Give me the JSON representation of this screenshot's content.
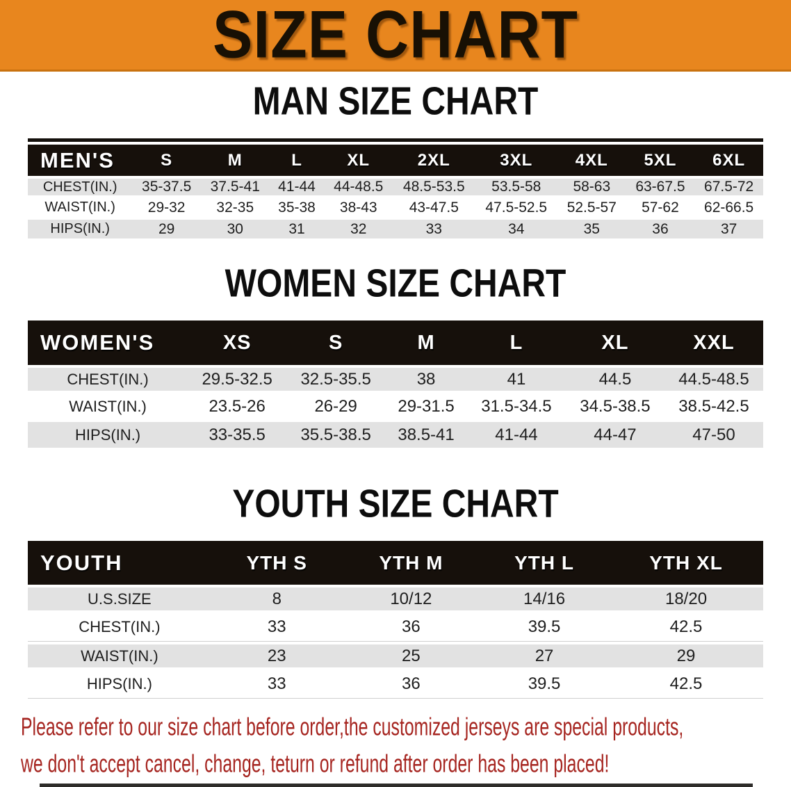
{
  "banner": {
    "title": "SIZE CHART",
    "bg_color": "#e8861e"
  },
  "sections": [
    {
      "heading": "MAN SIZE CHART",
      "table": {
        "label": "MEN'S",
        "columns": [
          "S",
          "M",
          "L",
          "XL",
          "2XL",
          "3XL",
          "4XL",
          "5XL",
          "6XL"
        ],
        "rows": [
          {
            "label": "CHEST(IN.)",
            "values": [
              "35-37.5",
              "37.5-41",
              "41-44",
              "44-48.5",
              "48.5-53.5",
              "53.5-58",
              "58-63",
              "63-67.5",
              "67.5-72"
            ]
          },
          {
            "label": "WAIST(IN.)",
            "values": [
              "29-32",
              "32-35",
              "35-38",
              "38-43",
              "43-47.5",
              "47.5-52.5",
              "52.5-57",
              "57-62",
              "62-66.5"
            ]
          },
          {
            "label": "HIPS(IN.)",
            "values": [
              "29",
              "30",
              "31",
              "32",
              "33",
              "34",
              "35",
              "36",
              "37"
            ]
          }
        ]
      }
    },
    {
      "heading": "WOMEN SIZE CHART",
      "table": {
        "label": "WOMEN'S",
        "columns": [
          "XS",
          "S",
          "M",
          "L",
          "XL",
          "XXL"
        ],
        "rows": [
          {
            "label": "CHEST(IN.)",
            "values": [
              "29.5-32.5",
              "32.5-35.5",
              "38",
              "41",
              "44.5",
              "44.5-48.5"
            ]
          },
          {
            "label": "WAIST(IN.)",
            "values": [
              "23.5-26",
              "26-29",
              "29-31.5",
              "31.5-34.5",
              "34.5-38.5",
              "38.5-42.5"
            ]
          },
          {
            "label": "HIPS(IN.)",
            "values": [
              "33-35.5",
              "35.5-38.5",
              "38.5-41",
              "41-44",
              "44-47",
              "47-50"
            ]
          }
        ]
      }
    },
    {
      "heading": "YOUTH SIZE CHART",
      "table": {
        "label": "YOUTH",
        "columns": [
          "YTH S",
          "YTH M",
          "YTH L",
          "YTH XL"
        ],
        "rows": [
          {
            "label": "U.S.SIZE",
            "values": [
              "8",
              "10/12",
              "14/16",
              "18/20"
            ]
          },
          {
            "label": "CHEST(IN.)",
            "values": [
              "33",
              "36",
              "39.5",
              "42.5"
            ]
          },
          {
            "label": "WAIST(IN.)",
            "values": [
              "23",
              "25",
              "27",
              "29"
            ]
          },
          {
            "label": "HIPS(IN.)",
            "values": [
              "33",
              "36",
              "39.5",
              "42.5"
            ]
          }
        ]
      }
    }
  ],
  "disclaimer": {
    "lines": [
      "Please refer to our size chart before order,the customized jerseys are special products,",
      "we don't accept cancel, change, teturn or refund after order has been placed!"
    ],
    "color": "#a62520"
  },
  "colors": {
    "banner_orange": "#e8861e",
    "banner_edge": "#c9720f",
    "table_header_black": "#16100b",
    "row_gray": "#e2e2e2",
    "disclaimer_red": "#a62520"
  }
}
